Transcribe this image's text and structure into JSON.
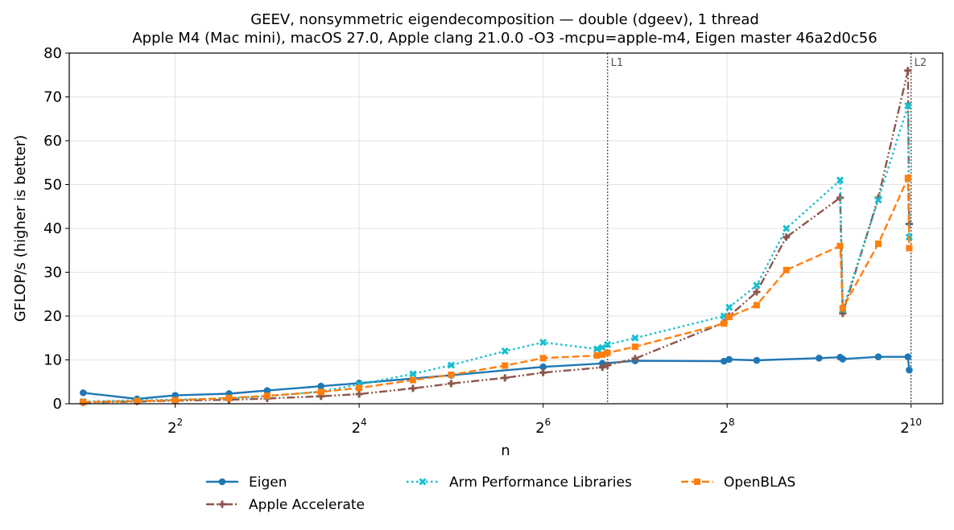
{
  "chart_data": {
    "type": "line",
    "title": "GEEV, nonsymmetric eigendecomposition — double (dgeev), 1 thread",
    "subtitle": "Apple M4 (Mac mini), macOS 27.0, Apple clang 21.0.0 -O3 -mcpu=apple-m4, Eigen master 46a2d0c56",
    "xlabel": "n",
    "ylabel": "GFLOP/s (higher is better)",
    "xscale": "log2",
    "xlim": [
      1.8,
      1300
    ],
    "ylim": [
      0,
      80
    ],
    "yticks": [
      0,
      10,
      20,
      30,
      40,
      50,
      60,
      70,
      80
    ],
    "xticks": [
      {
        "value": 4,
        "base": "2",
        "exp": "2"
      },
      {
        "value": 16,
        "base": "2",
        "exp": "4"
      },
      {
        "value": 64,
        "base": "2",
        "exp": "6"
      },
      {
        "value": 256,
        "base": "2",
        "exp": "8"
      },
      {
        "value": 1024,
        "base": "2",
        "exp": "10"
      }
    ],
    "grid": true,
    "legend_position": "bottom",
    "reference_lines": [
      {
        "label": "L1",
        "x": 104
      },
      {
        "label": "L2",
        "x": 1024
      }
    ],
    "series": [
      {
        "name": "Eigen",
        "color": "#1f77b4",
        "marker": "circle",
        "linestyle": "solid",
        "x": [
          2,
          3,
          4,
          6,
          8,
          12,
          16,
          32,
          64,
          100,
          128,
          250,
          260,
          320,
          512,
          600,
          612,
          800,
          1000,
          1010
        ],
        "y": [
          2.5,
          1.1,
          1.9,
          2.3,
          3.0,
          4.0,
          4.7,
          6.5,
          8.4,
          9.2,
          9.8,
          9.7,
          10.1,
          9.9,
          10.4,
          10.6,
          10.2,
          10.7,
          10.7,
          7.7
        ]
      },
      {
        "name": "Apple Accelerate",
        "color": "#8c564b",
        "marker": "plus",
        "linestyle": "dashdotdot",
        "x": [
          2,
          3,
          4,
          6,
          8,
          12,
          16,
          24,
          32,
          48,
          64,
          100,
          104,
          128,
          250,
          260,
          320,
          400,
          600,
          612,
          800,
          1000,
          1010
        ],
        "y": [
          0.3,
          0.5,
          0.7,
          0.9,
          1.2,
          1.7,
          2.2,
          3.5,
          4.6,
          5.9,
          7.1,
          8.3,
          8.8,
          10.3,
          18.5,
          20.0,
          25.5,
          38.0,
          47.0,
          20.6,
          47.0,
          76.0,
          41.0
        ]
      },
      {
        "name": "Arm Performance Libraries",
        "color": "#17becf",
        "marker": "x",
        "linestyle": "dotted",
        "x": [
          2,
          3,
          4,
          6,
          8,
          12,
          16,
          24,
          32,
          48,
          64,
          96,
          100,
          104,
          128,
          250,
          260,
          320,
          400,
          600,
          612,
          800,
          1000,
          1010
        ],
        "y": [
          0.5,
          0.8,
          0.9,
          1.3,
          1.7,
          2.8,
          4.4,
          6.8,
          8.8,
          12.0,
          14.0,
          12.5,
          12.8,
          13.5,
          15.0,
          20.0,
          22.0,
          27.0,
          40.0,
          51.0,
          21.5,
          46.5,
          68.0,
          38.0
        ]
      },
      {
        "name": "OpenBLAS",
        "color": "#ff7f0e",
        "marker": "square",
        "linestyle": "dashed",
        "x": [
          2,
          3,
          4,
          6,
          8,
          12,
          16,
          24,
          32,
          48,
          64,
          96,
          100,
          104,
          128,
          250,
          260,
          320,
          400,
          600,
          612,
          800,
          1000,
          1010
        ],
        "y": [
          0.4,
          0.6,
          0.8,
          1.3,
          1.8,
          2.7,
          3.6,
          5.4,
          6.6,
          8.7,
          10.4,
          11.0,
          11.2,
          11.6,
          13.0,
          18.3,
          19.8,
          22.5,
          30.5,
          36.0,
          21.8,
          36.5,
          51.5,
          35.5
        ]
      }
    ]
  }
}
